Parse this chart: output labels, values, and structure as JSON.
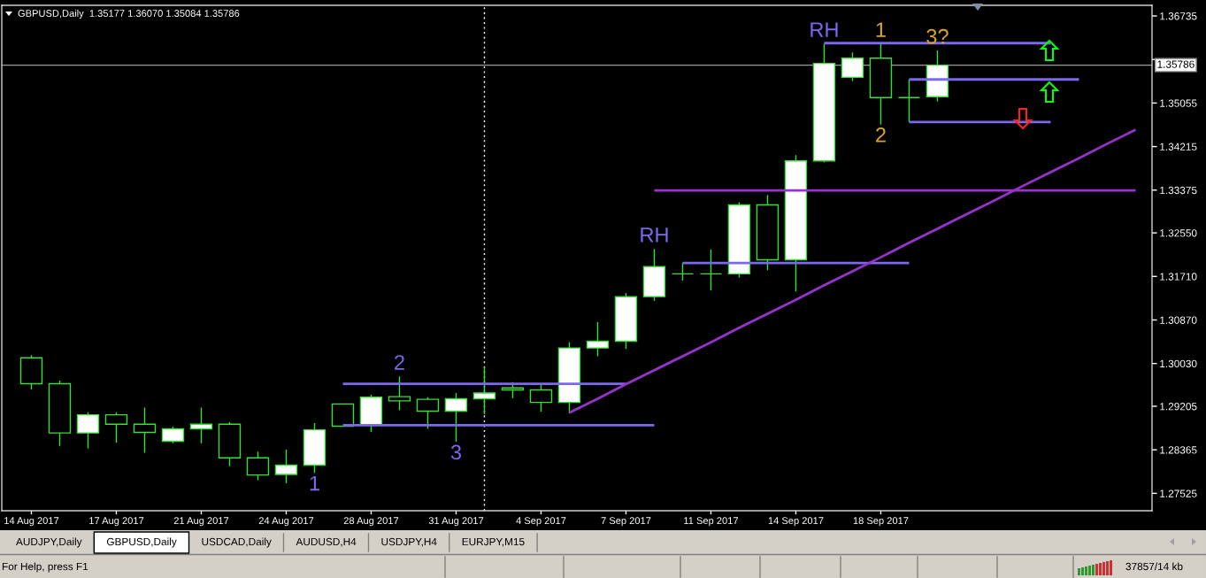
{
  "chart_data": {
    "type": "candlestick",
    "title": "GBPUSD,Daily  1.35177 1.36070 1.35084 1.35786",
    "categories": [
      "14 Aug 2017",
      null,
      null,
      "17 Aug 2017",
      null,
      null,
      "21 Aug 2017",
      null,
      null,
      "24 Aug 2017",
      null,
      null,
      "28 Aug 2017",
      null,
      null,
      "31 Aug 2017",
      null,
      null,
      "4 Sep 2017",
      null,
      null,
      "7 Sep 2017",
      null,
      null,
      "11 Sep 2017",
      null,
      null,
      "14 Sep 2017",
      null,
      null,
      "18 Sep 2017",
      null,
      null,
      null,
      null,
      null,
      null,
      null,
      null,
      null
    ],
    "ohlc": [
      [
        1.3014,
        1.3019,
        1.2953,
        1.2964
      ],
      [
        1.2964,
        1.297,
        1.2844,
        1.2869
      ],
      [
        1.2869,
        1.2909,
        1.2839,
        1.2904
      ],
      [
        1.2904,
        1.2909,
        1.285,
        1.2886
      ],
      [
        1.2886,
        1.2918,
        1.2831,
        1.287
      ],
      [
        1.2853,
        1.2881,
        1.2849,
        1.2877
      ],
      [
        1.2877,
        1.2918,
        1.2849,
        1.2886
      ],
      [
        1.2886,
        1.289,
        1.2805,
        1.2821
      ],
      [
        1.2821,
        1.2833,
        1.2778,
        1.2788
      ],
      [
        1.2789,
        1.2837,
        1.2772,
        1.2807
      ],
      [
        1.2807,
        1.2888,
        1.2792,
        1.2875
      ],
      [
        1.2925,
        1.2925,
        1.2881,
        1.2882
      ],
      [
        1.2884,
        1.2943,
        1.2871,
        1.2938
      ],
      [
        1.2939,
        1.2978,
        1.2913,
        1.2931
      ],
      [
        1.2934,
        1.2938,
        1.2877,
        1.2911
      ],
      [
        1.2911,
        1.2946,
        1.2852,
        1.2935
      ],
      [
        1.2935,
        1.2997,
        1.2905,
        1.2946
      ],
      [
        1.2956,
        1.2967,
        1.2936,
        1.2952
      ],
      [
        1.2952,
        1.2963,
        1.291,
        1.2928
      ],
      [
        1.2928,
        1.3044,
        1.2907,
        1.3033
      ],
      [
        1.3033,
        1.3083,
        1.3017,
        1.3046
      ],
      [
        1.3046,
        1.3139,
        1.3031,
        1.3132
      ],
      [
        1.3132,
        1.3224,
        1.3124,
        1.319
      ],
      [
        1.3176,
        1.3197,
        1.3163,
        1.3176
      ],
      [
        1.3176,
        1.3223,
        1.3144,
        1.3176
      ],
      [
        1.3176,
        1.3314,
        1.3169,
        1.3309
      ],
      [
        1.3309,
        1.3328,
        1.3183,
        1.3203
      ],
      [
        1.3203,
        1.3405,
        1.3142,
        1.3394
      ],
      [
        1.3394,
        1.362,
        1.3391,
        1.3582
      ],
      [
        1.3555,
        1.3603,
        1.3548,
        1.3592
      ],
      [
        1.3592,
        1.362,
        1.3464,
        1.3516
      ],
      [
        1.3516,
        1.3551,
        1.3469,
        1.3516
      ],
      [
        1.35177,
        1.3607,
        1.35084,
        1.35786
      ],
      null,
      null,
      null,
      null,
      null,
      null,
      null
    ],
    "color": "#3cdc3c",
    "colors": [
      "#000000",
      "#000000",
      "#ffffff",
      "#000000",
      "#000000",
      "#ffffff",
      "#ffffff",
      "#000000",
      "#000000",
      "#ffffff",
      "#ffffff",
      "#000000",
      "#ffffff",
      "#000000",
      "#000000",
      "#ffffff",
      "#ffffff",
      "#000000",
      "#000000",
      "#ffffff",
      "#ffffff",
      "#ffffff",
      "#ffffff",
      "#3cdc3c",
      "#3cdc3c",
      "#ffffff",
      "#000000",
      "#ffffff",
      "#ffffff",
      "#ffffff",
      "#000000",
      "#3cdc3c",
      "#ffffff",
      null,
      null,
      null,
      null,
      null,
      null,
      null
    ],
    "series": [
      {
        "type": "line",
        "color": "#7b68ee",
        "values": [
          null,
          null,
          null,
          null,
          null,
          null,
          null,
          null,
          null,
          null,
          null,
          1.2964,
          1.2964,
          1.2964,
          1.2964,
          1.2964,
          1.2964,
          1.2964,
          1.2964,
          1.2964,
          1.2964,
          1.2964,
          null,
          null,
          null,
          null,
          null,
          null,
          null,
          null,
          null,
          null,
          null,
          null,
          null,
          null,
          null,
          null,
          null,
          null
        ]
      },
      {
        "type": "line",
        "color": "#7b68ee",
        "values": [
          null,
          null,
          null,
          null,
          null,
          null,
          null,
          null,
          null,
          null,
          null,
          1.2884,
          1.2884,
          1.2884,
          1.2884,
          1.2884,
          1.2884,
          1.2884,
          1.2884,
          1.2884,
          1.2884,
          1.2884,
          1.2884,
          null,
          null,
          null,
          null,
          null,
          null,
          null,
          null,
          null,
          null,
          null,
          null,
          null,
          null,
          null,
          null,
          null
        ]
      },
      {
        "type": "line",
        "color": "#7b68ee",
        "values": [
          null,
          null,
          null,
          null,
          null,
          null,
          null,
          null,
          null,
          null,
          null,
          null,
          null,
          null,
          null,
          null,
          null,
          null,
          null,
          null,
          null,
          null,
          null,
          1.3197,
          1.3197,
          1.3197,
          1.3197,
          1.3197,
          1.3197,
          1.3197,
          1.3197,
          1.3197,
          null,
          null,
          null,
          null,
          null,
          null,
          null,
          null
        ]
      },
      {
        "type": "line",
        "color": "#7b68ee",
        "values": [
          null,
          null,
          null,
          null,
          null,
          null,
          null,
          null,
          null,
          null,
          null,
          null,
          null,
          null,
          null,
          null,
          null,
          null,
          null,
          null,
          null,
          null,
          null,
          null,
          null,
          null,
          null,
          null,
          1.3621,
          1.3621,
          1.3621,
          1.3621,
          1.3621,
          1.3621,
          1.3621,
          1.3621,
          1.3621,
          null,
          null,
          null
        ]
      },
      {
        "type": "line",
        "color": "#7b68ee",
        "values": [
          null,
          null,
          null,
          null,
          null,
          null,
          null,
          null,
          null,
          null,
          null,
          null,
          null,
          null,
          null,
          null,
          null,
          null,
          null,
          null,
          null,
          null,
          null,
          null,
          null,
          null,
          null,
          null,
          null,
          null,
          null,
          1.3551,
          1.3551,
          1.3551,
          1.3551,
          1.3551,
          1.3551,
          1.3551,
          null,
          null
        ]
      },
      {
        "type": "line",
        "color": "#7b68ee",
        "values": [
          null,
          null,
          null,
          null,
          null,
          null,
          null,
          null,
          null,
          null,
          null,
          null,
          null,
          null,
          null,
          null,
          null,
          null,
          null,
          null,
          null,
          null,
          null,
          null,
          null,
          null,
          null,
          null,
          null,
          null,
          null,
          1.3469,
          1.3469,
          1.3469,
          1.3469,
          1.3469,
          1.3469,
          null,
          null,
          null
        ]
      },
      {
        "type": "line",
        "color": "#9932cc",
        "values": [
          null,
          null,
          null,
          null,
          null,
          null,
          null,
          null,
          null,
          null,
          null,
          null,
          null,
          null,
          null,
          null,
          null,
          null,
          null,
          null,
          null,
          null,
          1.3337,
          1.3337,
          1.3337,
          1.3337,
          1.3337,
          1.3337,
          1.3337,
          1.3337,
          1.3337,
          1.3337,
          1.3337,
          1.3337,
          1.3337,
          1.3337,
          1.3337,
          1.3337,
          1.3337,
          1.3337
        ]
      },
      {
        "type": "line",
        "color": "#9932cc",
        "values": [
          null,
          null,
          null,
          null,
          null,
          null,
          null,
          null,
          null,
          null,
          null,
          null,
          null,
          null,
          null,
          null,
          null,
          null,
          null,
          1.2908,
          1.2935,
          1.2963,
          1.299,
          1.3017,
          1.3044,
          1.3072,
          1.3099,
          1.3126,
          1.3154,
          1.3181,
          1.3208,
          1.3236,
          1.3263,
          1.329,
          1.3317,
          1.3345,
          1.3372,
          1.3399,
          1.3427,
          1.3454
        ]
      }
    ],
    "ylim": [
      1.2719,
      1.3694
    ],
    "yticks": [
      1.27525,
      1.28365,
      1.29205,
      {
        "value": 1.3003,
        "label": "1.30030"
      },
      {
        "value": 1.3087,
        "label": "1.30870"
      },
      {
        "value": 1.3171,
        "label": "1.31710"
      },
      {
        "value": 1.3255,
        "label": "1.32550"
      },
      1.33375,
      1.34215,
      1.35055,
      {
        "value": 1.35895,
        "label": null
      },
      1.36735
    ],
    "ref_lines": [
      {
        "axis": "y",
        "value": 1.35786,
        "label": "1.35786",
        "color": "#9a9a9a"
      }
    ],
    "annotations": [
      {
        "text": "1",
        "y": 1.2792
      },
      {
        "text": "2",
        "y": 1.2978
      },
      {
        "text": "3",
        "x": "31 Aug 2017",
        "y": 1.2852
      },
      {
        "text": "RH",
        "y": 1.3224
      },
      {
        "text": "RH",
        "y": 1.362
      },
      {
        "text": "1",
        "x": "18 Sep 2017",
        "y": 1.362
      },
      {
        "text": "2",
        "x": "18 Sep 2017",
        "y": 1.3464
      },
      {
        "text": "3?",
        "y": 1.3607
      },
      "AUDJPY,Daily",
      "GBPUSD,Daily",
      "USDCAD,Daily",
      "AUDUSD,H4",
      "USDJPY,H4",
      "EURJPY,M15",
      "For Help, press F1",
      "37857/14 kb"
    ]
  }
}
